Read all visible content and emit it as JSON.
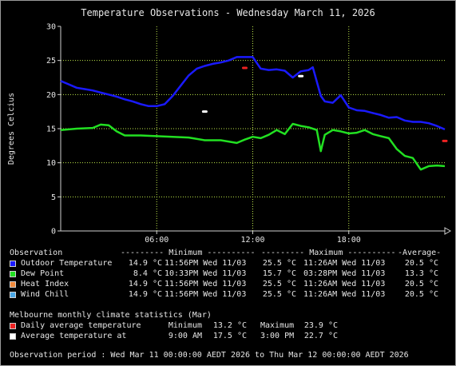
{
  "chart_data": {
    "type": "line",
    "title": "Temperature Observations - Wednesday March 11, 2026",
    "ylabel": "Degrees Celcius",
    "xlabel": "",
    "ylim": [
      0,
      30
    ],
    "xlim": [
      "00:00",
      "24:00"
    ],
    "x_ticks": [
      "06:00",
      "12:00",
      "18:00"
    ],
    "y_ticks": [
      0,
      5,
      10,
      15,
      20,
      25,
      30
    ],
    "grid": true,
    "series": [
      {
        "name": "Outdoor Temperature",
        "color": "#1a1aff",
        "x": [
          "00:00",
          "00:30",
          "01:00",
          "01:30",
          "02:00",
          "02:30",
          "03:00",
          "03:30",
          "04:00",
          "04:30",
          "05:00",
          "05:30",
          "06:00",
          "06:30",
          "07:00",
          "07:30",
          "08:00",
          "08:30",
          "09:00",
          "09:30",
          "10:00",
          "10:30",
          "11:00",
          "11:30",
          "12:00",
          "12:30",
          "13:00",
          "13:30",
          "14:00",
          "14:30",
          "15:00",
          "15:30",
          "15:45",
          "16:15",
          "16:30",
          "17:00",
          "17:30",
          "18:00",
          "18:30",
          "19:00",
          "19:30",
          "20:00",
          "20:30",
          "21:00",
          "21:30",
          "22:00",
          "22:30",
          "23:00",
          "23:30",
          "24:00"
        ],
        "values": [
          22.0,
          21.5,
          21.0,
          20.8,
          20.6,
          20.3,
          20.0,
          19.7,
          19.3,
          19.0,
          18.6,
          18.3,
          18.3,
          18.6,
          19.8,
          21.3,
          22.8,
          23.8,
          24.2,
          24.5,
          24.7,
          25.0,
          25.5,
          25.5,
          25.5,
          23.8,
          23.6,
          23.7,
          23.5,
          22.5,
          23.4,
          23.6,
          24.0,
          19.8,
          19.0,
          18.8,
          19.9,
          18.1,
          17.7,
          17.6,
          17.3,
          17.0,
          16.6,
          16.7,
          16.2,
          16.0,
          16.0,
          15.8,
          15.4,
          14.9
        ]
      },
      {
        "name": "Dew Point",
        "color": "#22e022",
        "x": [
          "00:00",
          "01:00",
          "02:00",
          "02:30",
          "03:00",
          "03:30",
          "04:00",
          "05:00",
          "06:00",
          "07:00",
          "08:00",
          "09:00",
          "10:00",
          "11:00",
          "11:30",
          "12:00",
          "12:30",
          "13:00",
          "13:30",
          "14:00",
          "14:30",
          "15:00",
          "15:30",
          "16:00",
          "16:15",
          "16:30",
          "17:00",
          "17:30",
          "18:00",
          "18:30",
          "19:00",
          "19:30",
          "20:00",
          "20:30",
          "21:00",
          "21:30",
          "22:00",
          "22:30",
          "23:00",
          "23:30",
          "24:00"
        ],
        "values": [
          14.8,
          15.0,
          15.1,
          15.6,
          15.5,
          14.6,
          14.0,
          14.0,
          13.9,
          13.8,
          13.7,
          13.3,
          13.3,
          12.9,
          13.4,
          13.8,
          13.6,
          14.1,
          14.8,
          14.2,
          15.7,
          15.4,
          15.2,
          14.8,
          11.7,
          14.1,
          14.8,
          14.6,
          14.3,
          14.4,
          14.8,
          14.2,
          13.9,
          13.6,
          12.0,
          11.0,
          10.7,
          9.0,
          9.5,
          9.6,
          9.5
        ]
      }
    ],
    "markers": [
      {
        "name": "Daily average temperature",
        "color": "#ee2222",
        "items": [
          {
            "x": "11:30",
            "y": 23.9
          },
          {
            "x": "24:00",
            "y": 13.2
          }
        ]
      },
      {
        "name": "Average temperature at",
        "color": "#ffffff",
        "items": [
          {
            "x": "09:00",
            "y": 17.5
          },
          {
            "x": "15:00",
            "y": 22.7
          }
        ]
      }
    ]
  },
  "obs_table": {
    "header": {
      "observation": "Observation",
      "minimum": "--------- Minimum ----------",
      "maximum": "--------- Maximum ----------",
      "average": "-Average-"
    },
    "rows": [
      {
        "label": "Outdoor Temperature",
        "color": "#1a1aff",
        "min": "14.9 °C",
        "min_at": "11:56PM Wed 11/03",
        "max": "25.5 °C",
        "max_at": "11:26AM Wed 11/03",
        "avg": "20.5 °C"
      },
      {
        "label": "Dew Point",
        "color": "#22e022",
        "min": "8.4 °C",
        "min_at": "10:33PM Wed 11/03",
        "max": "15.7 °C",
        "max_at": "03:28PM Wed 11/03",
        "avg": "13.3 °C"
      },
      {
        "label": "Heat Index",
        "color": "#f08a3c",
        "min": "14.9 °C",
        "min_at": "11:56PM Wed 11/03",
        "max": "25.5 °C",
        "max_at": "11:26AM Wed 11/03",
        "avg": "20.5 °C"
      },
      {
        "label": "Wind Chill",
        "color": "#4aa8e8",
        "min": "14.9 °C",
        "min_at": "11:56PM Wed 11/03",
        "max": "25.5 °C",
        "max_at": "11:26AM Wed 11/03",
        "avg": "20.5 °C"
      }
    ]
  },
  "climate": {
    "heading": "Melbourne monthly climate statistics (Mar)",
    "rows": [
      {
        "label": "Daily average temperature",
        "color": "#ee2222",
        "left_label": "Minimum",
        "left_value": "13.2 °C",
        "right_label": "Maximum",
        "right_value": "23.9 °C"
      },
      {
        "label": "Average temperature at",
        "color": "#ffffff",
        "left_label": "9:00 AM",
        "left_value": "17.5 °C",
        "right_label": "3:00 PM",
        "right_value": "22.7 °C"
      }
    ]
  },
  "period": "Observation period : Wed Mar 11 00:00:00 AEDT 2026 to Thu Mar 12 00:00:00 AEDT 2026"
}
